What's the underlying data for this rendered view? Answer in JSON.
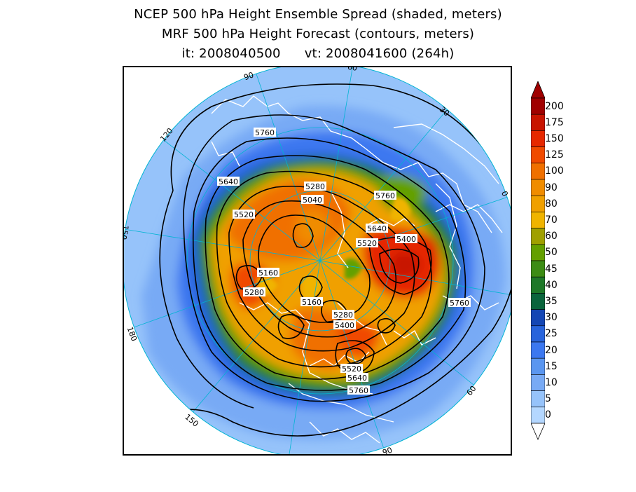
{
  "titles": {
    "line1": "NCEP 500 hPa Height Ensemble Spread (shaded, meters)",
    "line2": "MRF 500 hPa Height Forecast (contours, meters)",
    "init": "it: 2008040500",
    "valid": "vt: 2008041600 (264h)"
  },
  "map": {
    "projection": "north-polar-stereographic",
    "longitude_labels": [
      "60",
      "30",
      "0",
      "30",
      "60",
      "90",
      "120",
      "150",
      "180",
      "150",
      "120",
      "90"
    ],
    "contour_labels": [
      "5760",
      "5640",
      "5520",
      "5280",
      "5040",
      "5760",
      "5640",
      "5520",
      "5400",
      "5160",
      "5280",
      "5160",
      "5280",
      "5400",
      "5760",
      "5520",
      "5640",
      "5760"
    ]
  },
  "colorbar": {
    "levels": [
      "200",
      "175",
      "150",
      "125",
      "100",
      "90",
      "80",
      "70",
      "60",
      "50",
      "45",
      "40",
      "35",
      "30",
      "25",
      "20",
      "15",
      "10",
      "5",
      "0"
    ],
    "colors": [
      "#a00000",
      "#c81400",
      "#e62800",
      "#f04a00",
      "#f07000",
      "#f08c00",
      "#f0a000",
      "#f0b400",
      "#a0a000",
      "#64a000",
      "#3c8c14",
      "#1e7828",
      "#0a643c",
      "#1446b4",
      "#2864dc",
      "#3c78f0",
      "#5a96f0",
      "#78aaf5",
      "#96c3fa",
      "#b4d7ff"
    ]
  }
}
